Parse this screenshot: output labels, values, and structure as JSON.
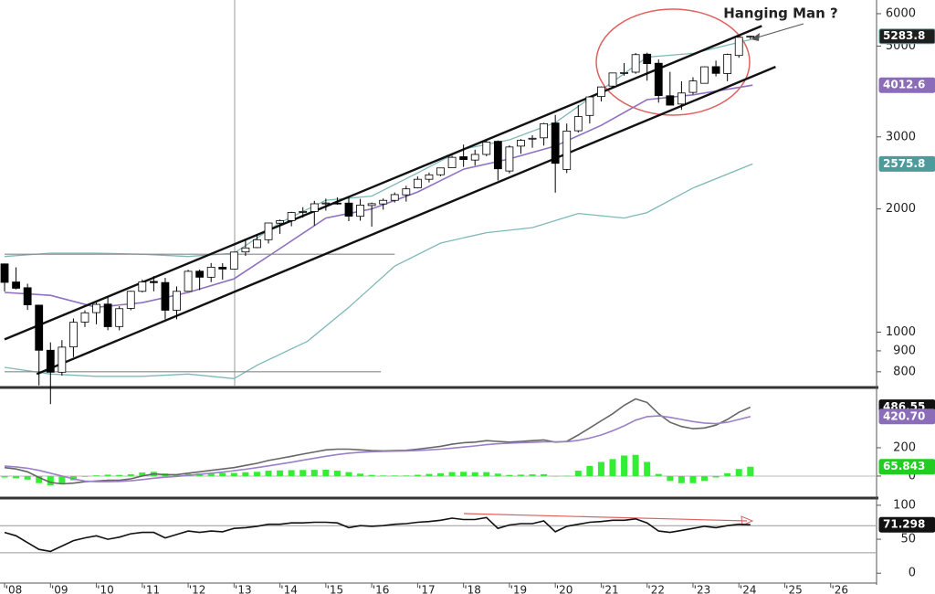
{
  "chart_data": [
    {
      "type": "candlestick",
      "log": true,
      "xlim": [
        2007.9,
        2027
      ],
      "ylim": [
        740,
        6480
      ],
      "yticks": [
        800,
        900,
        1000,
        2000,
        3000,
        5000,
        6000
      ],
      "annotation": "Hanging Man ?",
      "x": [
        2008,
        2008.25,
        2008.5,
        2008.75,
        2009,
        2009.25,
        2009.5,
        2009.75,
        2010,
        2010.25,
        2010.5,
        2010.75,
        2011,
        2011.25,
        2011.5,
        2011.75,
        2012,
        2012.25,
        2012.5,
        2012.75,
        2013,
        2013.25,
        2013.5,
        2013.75,
        2014,
        2014.25,
        2014.5,
        2014.75,
        2015,
        2015.25,
        2015.5,
        2015.75,
        2016,
        2016.25,
        2016.5,
        2016.75,
        2017,
        2017.25,
        2017.5,
        2017.75,
        2018,
        2018.25,
        2018.5,
        2018.75,
        2019,
        2019.25,
        2019.5,
        2019.75,
        2020,
        2020.25,
        2020.5,
        2020.75,
        2021,
        2021.25,
        2021.5,
        2021.75,
        2022,
        2022.25,
        2022.5,
        2022.75,
        2023,
        2023.25,
        2023.5,
        2023.75,
        2024,
        2024.25
      ],
      "open": [
        1468,
        1326,
        1284,
        1164,
        903,
        798,
        920,
        1058,
        1116,
        1171,
        1032,
        1143,
        1258,
        1330,
        1322,
        1131,
        1258,
        1409,
        1362,
        1441,
        1426,
        1570,
        1609,
        1682,
        1846,
        1873,
        1962,
        1971,
        2058,
        2067,
        2067,
        1919,
        2039,
        2057,
        2099,
        2165,
        2252,
        2363,
        2424,
        2521,
        2683,
        2633,
        2718,
        2926,
        2476,
        2848,
        2972,
        2984,
        3244,
        2498,
        3105,
        3385,
        3764,
        3992,
        4300,
        4317,
        4778,
        4540,
        3781,
        3609,
        3853,
        4055,
        4454,
        4284,
        4743,
        5258
      ],
      "high": [
        1471,
        1440,
        1313,
        1167,
        944,
        956,
        1080,
        1130,
        1180,
        1220,
        1157,
        1262,
        1344,
        1371,
        1357,
        1293,
        1420,
        1422,
        1475,
        1474,
        1570,
        1687,
        1729,
        1849,
        1884,
        1968,
        2019,
        2093,
        2119,
        2135,
        2133,
        2116,
        2073,
        2121,
        2194,
        2278,
        2401,
        2454,
        2520,
        2695,
        2873,
        2791,
        2940,
        2940,
        2860,
        2964,
        3028,
        3247,
        3394,
        3233,
        3588,
        3760,
        3983,
        4302,
        4546,
        4808,
        4819,
        4637,
        4325,
        4101,
        4196,
        4458,
        4608,
        4793,
        5264,
        5300
      ],
      "low": [
        1257,
        1272,
        1133,
        741,
        667,
        783,
        869,
        1029,
        1045,
        1011,
        1010,
        1131,
        1250,
        1258,
        1075,
        1075,
        1258,
        1267,
        1325,
        1343,
        1426,
        1536,
        1604,
        1647,
        1738,
        1814,
        1904,
        1821,
        1981,
        2048,
        1867,
        1872,
        1810,
        1992,
        2074,
        2084,
        2245,
        2322,
        2405,
        2520,
        2533,
        2553,
        2691,
        2347,
        2444,
        2728,
        2822,
        2856,
        2192,
        2447,
        3074,
        3234,
        3662,
        3978,
        4233,
        4279,
        4115,
        3636,
        3584,
        3492,
        3809,
        4049,
        4216,
        4103,
        4682,
        5200
      ],
      "close": [
        1323,
        1280,
        1166,
        903,
        798,
        919,
        1057,
        1115,
        1169,
        1031,
        1141,
        1258,
        1326,
        1321,
        1131,
        1258,
        1408,
        1362,
        1441,
        1426,
        1569,
        1606,
        1682,
        1848,
        1872,
        1960,
        1972,
        2059,
        2068,
        2063,
        1920,
        2044,
        2060,
        2099,
        2168,
        2239,
        2363,
        2423,
        2519,
        2674,
        2641,
        2718,
        2914,
        2507,
        2834,
        2942,
        2977,
        3231,
        2585,
        3100,
        3363,
        3756,
        3973,
        4298,
        4308,
        4766,
        4530,
        3785,
        3586,
        3840,
        4109,
        4450,
        4288,
        4770,
        5254,
        5284
      ],
      "up_color": "#ffffff",
      "down_color": "#000000",
      "candle_edge": "#000000",
      "lines": [
        {
          "color": "#7fb8b8",
          "width": 1.3,
          "x": [
            2008,
            2009,
            2010,
            2011,
            2012,
            2013,
            2014,
            2015,
            2016,
            2017,
            2018,
            2019,
            2020,
            2021,
            2022,
            2023,
            2024.3
          ],
          "values": [
            1530,
            1560,
            1560,
            1550,
            1530,
            1560,
            1850,
            2100,
            2150,
            2450,
            2800,
            2950,
            3250,
            3900,
            4700,
            4800,
            5200
          ]
        },
        {
          "color": "#9070c0",
          "width": 1.6,
          "x": [
            2008,
            2009,
            2010,
            2011,
            2012,
            2013,
            2014,
            2015,
            2016,
            2017,
            2018,
            2019,
            2020,
            2021,
            2022,
            2023,
            2024.3
          ],
          "values": [
            1250,
            1230,
            1150,
            1180,
            1250,
            1350,
            1600,
            1900,
            2000,
            2200,
            2500,
            2650,
            2850,
            3200,
            3700,
            3800,
            4012.6
          ]
        },
        {
          "color": "#7fb8b8",
          "width": 1.3,
          "x": [
            2008,
            2009,
            2010,
            2011,
            2012,
            2013,
            2013.5,
            2014.6,
            2015.5,
            2016.5,
            2017.5,
            2018.5,
            2019.5,
            2020.5,
            2021.5,
            2022,
            2023,
            2024.3
          ],
          "values": [
            820,
            790,
            780,
            780,
            790,
            770,
            830,
            950,
            1150,
            1450,
            1650,
            1750,
            1800,
            1950,
            1900,
            1960,
            2250,
            2575.8
          ]
        },
        {
          "color": "#888888",
          "width": 1.2,
          "x": [
            2008,
            2016.5
          ],
          "values": [
            1550,
            1550
          ]
        },
        {
          "color": "#888888",
          "width": 1.2,
          "x": [
            2008,
            2016.2
          ],
          "values": [
            800,
            800
          ]
        },
        {
          "color": "#111111",
          "width": 2.4,
          "x": [
            2008,
            2024.5
          ],
          "values": [
            960,
            5600
          ]
        },
        {
          "color": "#111111",
          "width": 2.4,
          "x": [
            2008.7,
            2024.8
          ],
          "values": [
            790,
            4450
          ]
        }
      ],
      "price_labels": [
        {
          "value": 5283.8,
          "color": "#1e1e1e",
          "border": "#5aa6a6"
        },
        {
          "value": 4012.6,
          "color": "#8a6cb8",
          "border": "#8a6cb8"
        },
        {
          "value": 2575.8,
          "color": "#4d9c9c",
          "border": "#4d9c9c"
        }
      ]
    },
    {
      "type": "line",
      "xlim": [
        2007.9,
        2027
      ],
      "ylim": [
        -123,
        600
      ],
      "yticks": [
        0,
        200
      ],
      "x": [
        2008,
        2008.25,
        2008.5,
        2008.75,
        2009,
        2009.25,
        2009.5,
        2009.75,
        2010,
        2010.25,
        2010.5,
        2010.75,
        2011,
        2011.25,
        2011.5,
        2011.75,
        2012,
        2012.25,
        2012.5,
        2012.75,
        2013,
        2013.25,
        2013.5,
        2013.75,
        2014,
        2014.25,
        2014.5,
        2014.75,
        2015,
        2015.25,
        2015.5,
        2015.75,
        2016,
        2016.25,
        2016.5,
        2016.75,
        2017,
        2017.25,
        2017.5,
        2017.75,
        2018,
        2018.25,
        2018.5,
        2018.75,
        2019,
        2019.25,
        2019.5,
        2019.75,
        2020,
        2020.25,
        2020.5,
        2020.75,
        2021,
        2021.25,
        2021.5,
        2021.75,
        2022,
        2022.25,
        2022.5,
        2022.75,
        2023,
        2023.25,
        2023.5,
        2023.75,
        2024,
        2024.25
      ],
      "series": [
        {
          "type": "bar",
          "color": "#33ee33",
          "values": [
            -10,
            -15,
            -25,
            -50,
            -65,
            -55,
            -30,
            -5,
            5,
            10,
            8,
            13,
            25,
            30,
            18,
            12,
            15,
            18,
            20,
            22,
            22,
            27,
            30,
            38,
            40,
            42,
            43,
            44,
            45,
            38,
            28,
            17,
            8,
            4,
            4,
            4,
            9,
            15,
            20,
            28,
            30,
            27,
            28,
            17,
            8,
            10,
            12,
            13,
            -2,
            2,
            38,
            72,
            100,
            120,
            145,
            150,
            100,
            15,
            -35,
            -50,
            -50,
            -35,
            -10,
            20,
            50,
            65.843
          ]
        },
        {
          "color": "#666666",
          "values": [
            60,
            50,
            30,
            -10,
            -45,
            -55,
            -50,
            -40,
            -35,
            -30,
            -30,
            -20,
            0,
            15,
            10,
            10,
            20,
            30,
            40,
            50,
            60,
            75,
            90,
            110,
            125,
            140,
            155,
            170,
            185,
            190,
            190,
            185,
            180,
            178,
            180,
            182,
            190,
            200,
            210,
            225,
            235,
            240,
            250,
            245,
            240,
            245,
            250,
            255,
            240,
            245,
            290,
            340,
            390,
            440,
            500,
            545,
            520,
            440,
            380,
            350,
            335,
            340,
            360,
            400,
            450,
            486.55
          ]
        },
        {
          "color": "#9a80c8",
          "values": [
            70,
            65,
            55,
            40,
            20,
            0,
            -20,
            -35,
            -40,
            -40,
            -38,
            -33,
            -25,
            -15,
            -8,
            -2,
            5,
            12,
            20,
            28,
            38,
            48,
            60,
            72,
            85,
            98,
            112,
            126,
            140,
            152,
            162,
            168,
            172,
            174,
            176,
            178,
            181,
            185,
            190,
            197,
            205,
            213,
            222,
            228,
            232,
            235,
            238,
            242,
            242,
            243,
            252,
            268,
            290,
            320,
            355,
            395,
            420,
            425,
            415,
            400,
            385,
            375,
            370,
            380,
            400,
            420.7
          ]
        }
      ],
      "zero_line": "#bbbbbb",
      "price_labels": [
        {
          "value": 486.55,
          "color": "#111111",
          "border": "#111111"
        },
        {
          "value": 420.7,
          "label": "420.70",
          "color": "#8a6cb8",
          "border": "#8a6cb8"
        },
        {
          "value": 65.843,
          "color": "#22cc22",
          "border": "#22cc22"
        }
      ]
    },
    {
      "type": "line",
      "xlim": [
        2007.9,
        2027
      ],
      "ylim": [
        -14.5,
        106.6
      ],
      "yticks": [
        0,
        50,
        100
      ],
      "xticks": [
        {
          "value": 2008,
          "label": "'08"
        },
        {
          "value": 2009,
          "label": "'09"
        },
        {
          "value": 2010,
          "label": "'10"
        },
        {
          "value": 2011,
          "label": "'11"
        },
        {
          "value": 2012,
          "label": "'12"
        },
        {
          "value": 2013,
          "label": "'13"
        },
        {
          "value": 2014,
          "label": "'14"
        },
        {
          "value": 2015,
          "label": "'15"
        },
        {
          "value": 2016,
          "label": "'16"
        },
        {
          "value": 2017,
          "label": "'17"
        },
        {
          "value": 2018,
          "label": "'18"
        },
        {
          "value": 2019,
          "label": "'19"
        },
        {
          "value": 2020,
          "label": "'20"
        },
        {
          "value": 2021,
          "label": "'21"
        },
        {
          "value": 2022,
          "label": "'22"
        },
        {
          "value": 2023,
          "label": "'23"
        },
        {
          "value": 2024,
          "label": "'24"
        },
        {
          "value": 2025,
          "label": "'25"
        },
        {
          "value": 2026,
          "label": "'26"
        }
      ],
      "x": [
        2008,
        2008.25,
        2008.5,
        2008.75,
        2009,
        2009.25,
        2009.5,
        2009.75,
        2010,
        2010.25,
        2010.5,
        2010.75,
        2011,
        2011.25,
        2011.5,
        2011.75,
        2012,
        2012.25,
        2012.5,
        2012.75,
        2013,
        2013.25,
        2013.5,
        2013.75,
        2014,
        2014.25,
        2014.5,
        2014.75,
        2015,
        2015.25,
        2015.5,
        2015.75,
        2016,
        2016.25,
        2016.5,
        2016.75,
        2017,
        2017.25,
        2017.5,
        2017.75,
        2018,
        2018.25,
        2018.5,
        2018.75,
        2019,
        2019.25,
        2019.5,
        2019.75,
        2020,
        2020.25,
        2020.5,
        2020.75,
        2021,
        2021.25,
        2021.5,
        2021.75,
        2022,
        2022.25,
        2022.5,
        2022.75,
        2023,
        2023.25,
        2023.5,
        2023.75,
        2024,
        2024.25
      ],
      "series": [
        {
          "color": "#111111",
          "values": [
            60,
            55,
            45,
            35,
            32,
            40,
            48,
            52,
            55,
            50,
            53,
            58,
            60,
            60,
            52,
            57,
            62,
            60,
            62,
            61,
            66,
            67,
            69,
            72,
            72,
            74,
            74,
            75,
            75,
            74,
            67,
            70,
            69,
            70,
            72,
            73,
            75,
            76,
            78,
            81,
            79,
            79,
            82,
            66,
            71,
            73,
            73,
            77,
            61,
            69,
            72,
            75,
            76,
            78,
            78,
            80,
            74,
            62,
            60,
            63,
            66,
            69,
            67,
            70,
            72,
            71.298
          ]
        }
      ],
      "reference_lines": [
        70,
        30
      ],
      "reference_color": "#999999",
      "price_labels": [
        {
          "value": 71.298,
          "color": "#111111",
          "border": "#111111"
        }
      ]
    }
  ]
}
